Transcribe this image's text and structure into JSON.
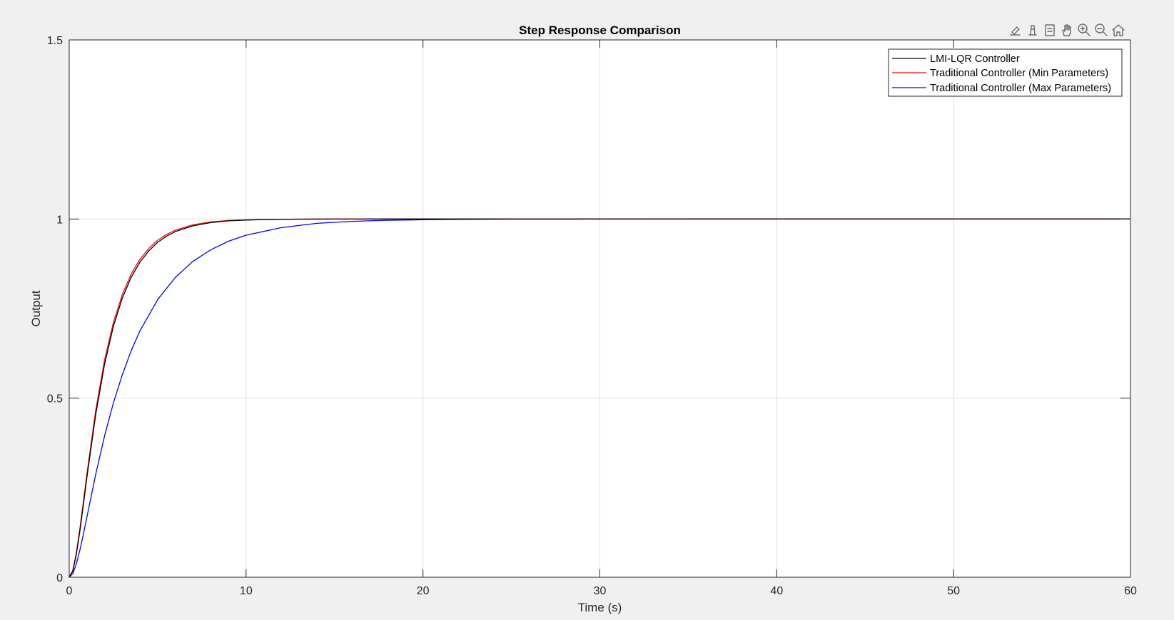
{
  "chart_data": {
    "type": "line",
    "title": "Step Response Comparison",
    "xlabel": "Time (s)",
    "ylabel": "Output",
    "xlim": [
      0,
      60
    ],
    "ylim": [
      0,
      1.5
    ],
    "xticks": [
      0,
      10,
      20,
      30,
      40,
      50,
      60
    ],
    "yticks": [
      0,
      0.5,
      1,
      1.5
    ],
    "xtick_labels": [
      "0",
      "10",
      "20",
      "30",
      "40",
      "50",
      "60"
    ],
    "ytick_labels": [
      "0",
      "0.5",
      "1",
      "1.5"
    ],
    "grid": true,
    "legend_position": "top-right",
    "series": [
      {
        "name": "LMI-LQR Controller",
        "color": "#000000",
        "x": [
          0,
          0.2,
          0.4,
          0.6,
          0.8,
          1,
          1.5,
          2,
          2.5,
          3,
          3.5,
          4,
          4.5,
          5,
          5.5,
          6,
          7,
          8,
          9,
          10,
          11,
          12,
          13,
          14,
          15,
          17,
          20,
          25,
          30,
          40,
          50,
          60
        ],
        "y": [
          0,
          0.017,
          0.063,
          0.128,
          0.202,
          0.279,
          0.455,
          0.595,
          0.701,
          0.779,
          0.837,
          0.88,
          0.911,
          0.935,
          0.952,
          0.965,
          0.981,
          0.99,
          0.995,
          0.997,
          0.9985,
          0.9992,
          0.9996,
          0.9998,
          0.9999,
          1,
          1,
          1,
          1,
          1,
          1,
          1
        ]
      },
      {
        "name": "Traditional Controller (Min Parameters)",
        "color": "#ff0000",
        "x": [
          0,
          0.2,
          0.4,
          0.6,
          0.8,
          1,
          1.5,
          2,
          2.5,
          3,
          3.5,
          4,
          4.5,
          5,
          5.5,
          6,
          7,
          8,
          9,
          10,
          11,
          12,
          13,
          14,
          15,
          17,
          20,
          25,
          30,
          40,
          50,
          60
        ],
        "y": [
          0,
          0.019,
          0.068,
          0.135,
          0.211,
          0.289,
          0.467,
          0.607,
          0.712,
          0.789,
          0.846,
          0.888,
          0.918,
          0.941,
          0.957,
          0.969,
          0.984,
          0.992,
          0.996,
          0.998,
          0.9988,
          0.9994,
          0.9997,
          0.9999,
          1,
          1,
          1,
          1,
          1,
          1,
          1,
          1
        ]
      },
      {
        "name": "Traditional Controller (Max Parameters)",
        "color": "#0000ff",
        "x": [
          0,
          0.2,
          0.4,
          0.6,
          0.8,
          1,
          1.5,
          2,
          2.5,
          3,
          3.5,
          4,
          5,
          6,
          7,
          8,
          9,
          10,
          12,
          14,
          16,
          18,
          20,
          22,
          25,
          28,
          30,
          35,
          40,
          50,
          60
        ],
        "y": [
          0,
          0.01,
          0.037,
          0.075,
          0.12,
          0.168,
          0.288,
          0.395,
          0.487,
          0.565,
          0.632,
          0.688,
          0.775,
          0.837,
          0.882,
          0.914,
          0.938,
          0.955,
          0.976,
          0.988,
          0.9935,
          0.9966,
          0.998,
          0.999,
          0.9996,
          0.9998,
          0.9999,
          1,
          1,
          1,
          1
        ]
      }
    ]
  }
}
